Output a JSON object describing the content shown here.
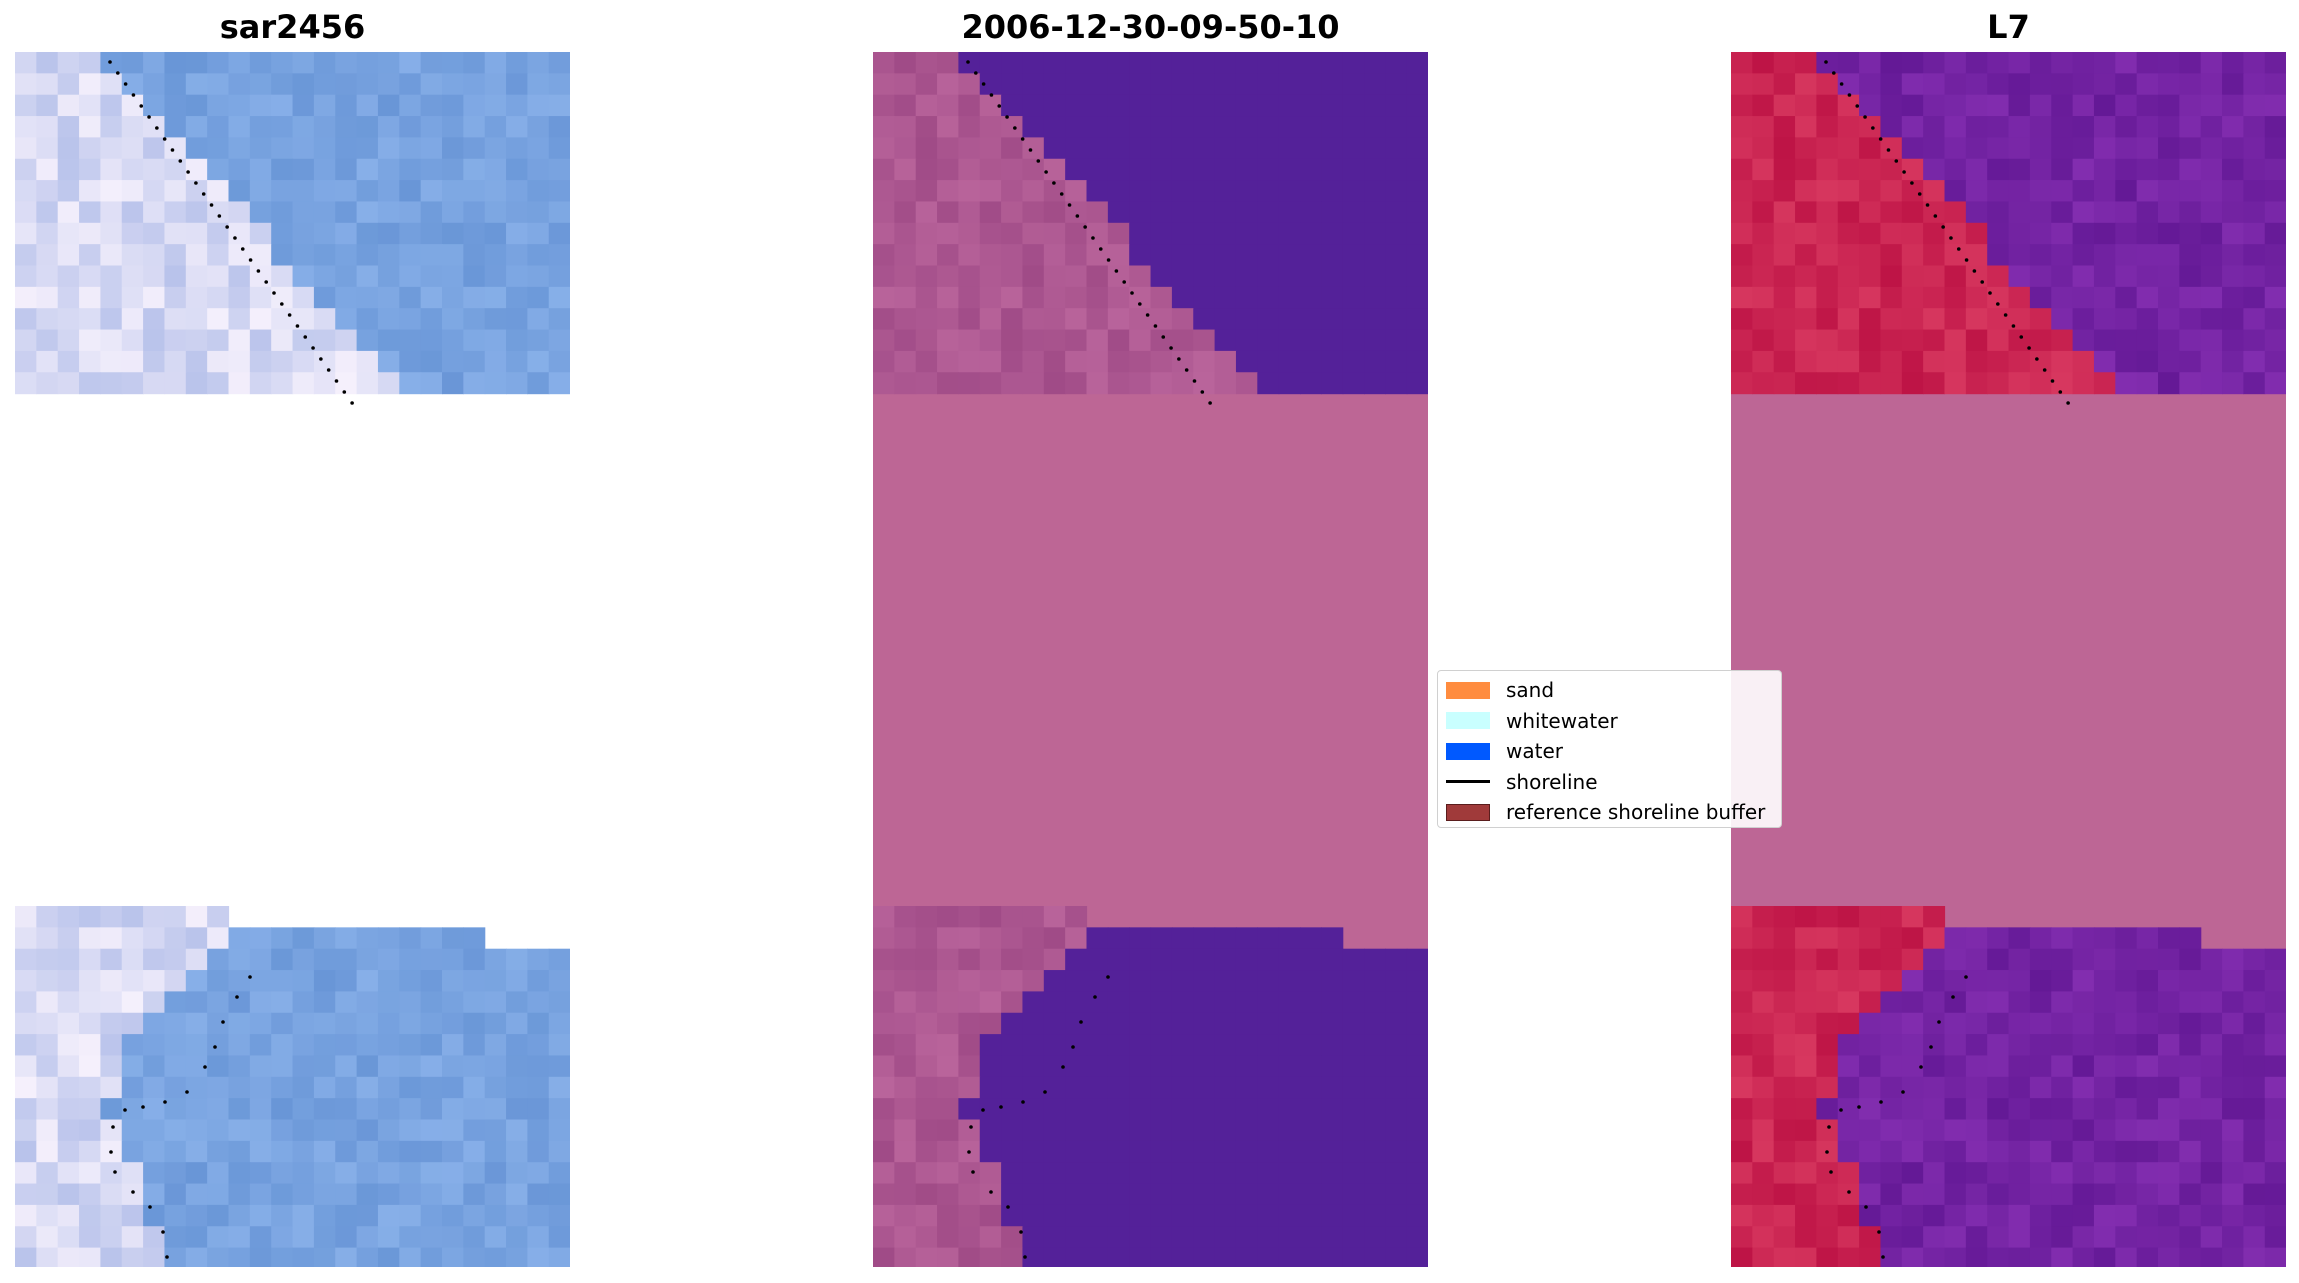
{
  "panels": [
    {
      "title": "sar2456",
      "style": "rgb"
    },
    {
      "title": "2006-12-30-09-50-10",
      "style": "classified"
    },
    {
      "title": "L7",
      "style": "index"
    }
  ],
  "legend": {
    "items": [
      {
        "label": "sand",
        "kind": "patch",
        "color": "#ff8c3f",
        "border": "#ff8c3f"
      },
      {
        "label": "whitewater",
        "kind": "patch",
        "color": "#c9ffff",
        "border": "#c9ffff"
      },
      {
        "label": "water",
        "kind": "patch",
        "color": "#0059ff",
        "border": "#0059ff"
      },
      {
        "label": "shoreline",
        "kind": "line",
        "color": "#000000"
      },
      {
        "label": "reference shoreline buffer",
        "kind": "patch",
        "color": "#a03a3a",
        "border": "#5a1d1d"
      }
    ]
  },
  "colors": {
    "masked_pink": "#bd6695",
    "water_purple": "#542199",
    "land_mauve": "#a8558e",
    "shoreline_dots": "#000000"
  }
}
